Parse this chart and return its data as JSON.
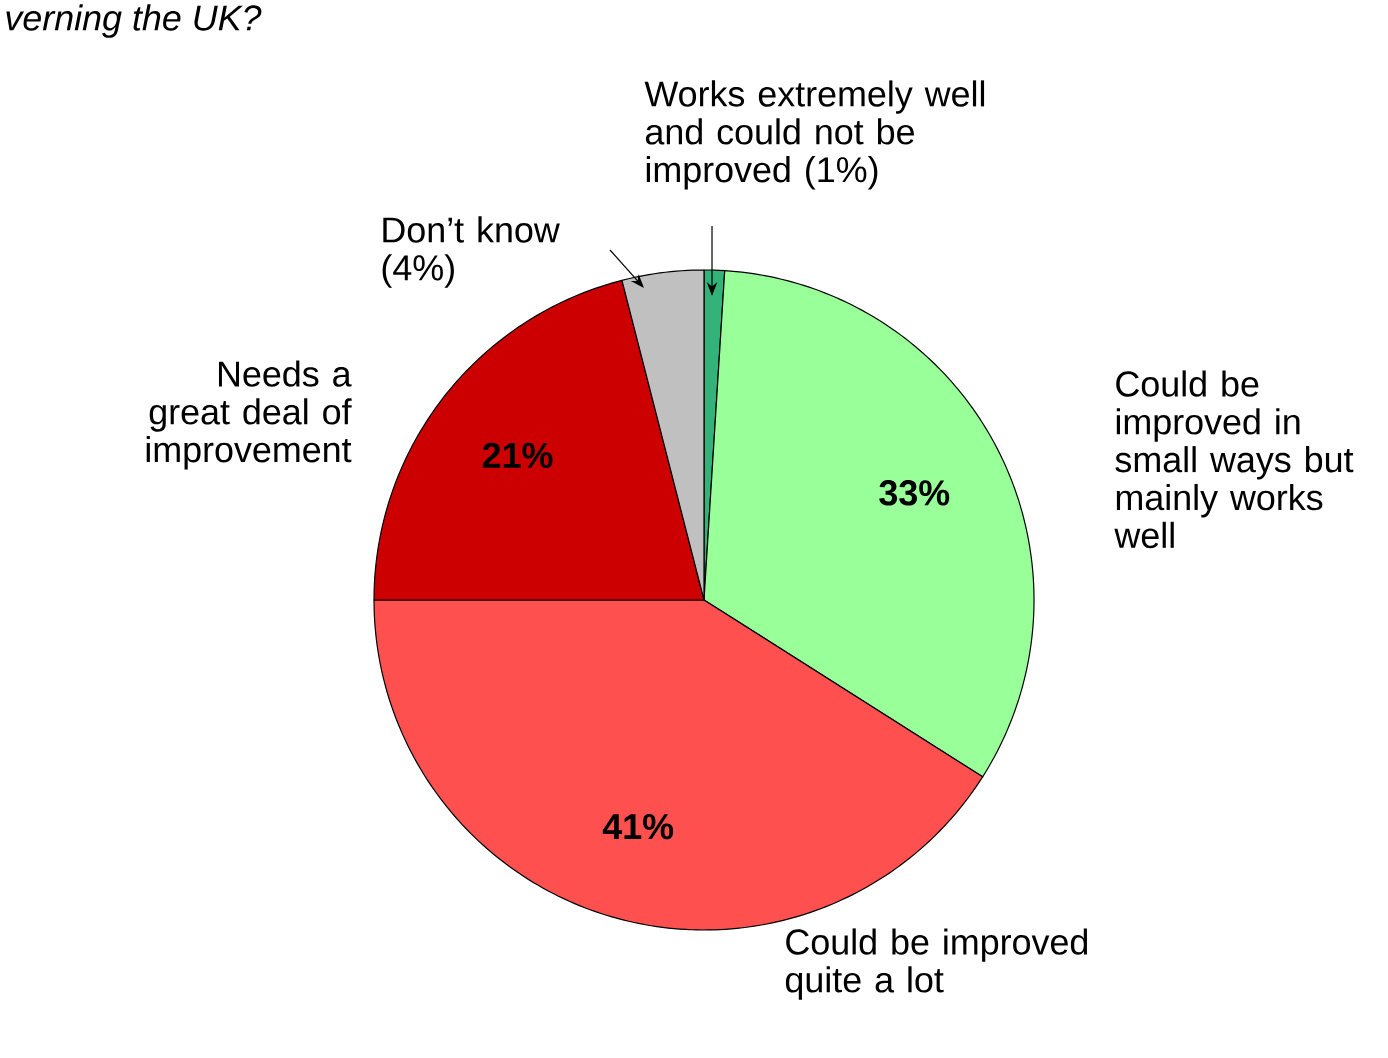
{
  "chart_data": {
    "type": "pie",
    "title": "verning the UK?",
    "categories": [
      "Works extremely well and could not be improved (1%)",
      "Could be improved in small ways but mainly works well",
      "Could be improved quite a lot",
      "Needs a great deal of improvement",
      "Don’t know (4%)"
    ],
    "values": [
      1,
      33,
      41,
      21,
      4
    ],
    "colors": [
      "#33b27a",
      "#99ff99",
      "#ff5050",
      "#cc0000",
      "#c0c0c0"
    ],
    "value_labels": [
      null,
      "33%",
      "41%",
      "21%",
      null
    ]
  }
}
